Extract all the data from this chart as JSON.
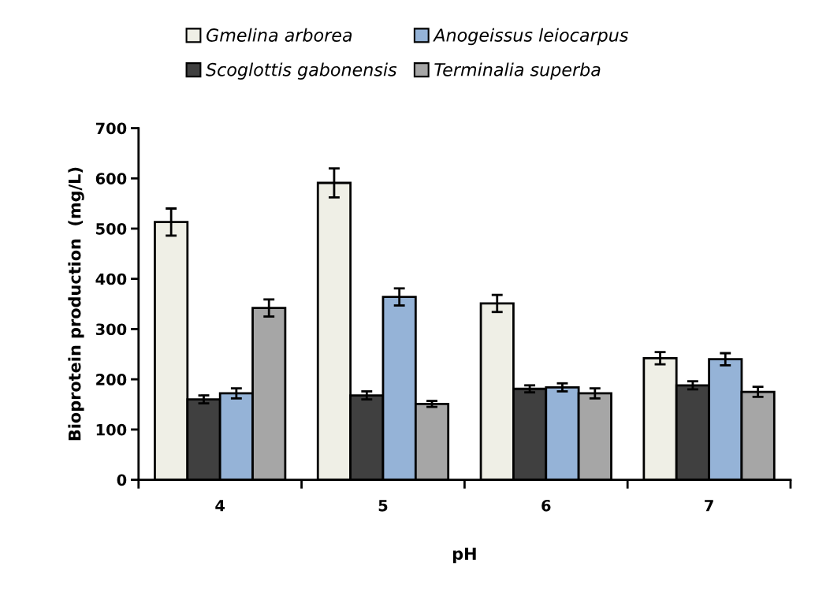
{
  "chart_data": {
    "type": "bar",
    "xlabel": "pH",
    "ylabel": "Bioprotein production  (mg/L)",
    "categories": [
      "4",
      "5",
      "6",
      "7"
    ],
    "series": [
      {
        "name": "Gmelina arborea",
        "color": "#efefe6",
        "values": [
          513,
          591,
          351,
          242
        ],
        "errors": [
          27,
          29,
          17,
          12
        ]
      },
      {
        "name": "Scoglottis gabonensis",
        "color": "#404040",
        "values": [
          160,
          168,
          181,
          188
        ],
        "errors": [
          8,
          8,
          7,
          8
        ]
      },
      {
        "name": "Anogeissus leiocarpus",
        "color": "#95b3d7",
        "values": [
          172,
          364,
          184,
          240
        ],
        "errors": [
          10,
          17,
          8,
          12
        ]
      },
      {
        "name": "Terminalia superba",
        "color": "#a6a6a6",
        "values": [
          342,
          151,
          172,
          175
        ],
        "errors": [
          17,
          6,
          10,
          10
        ]
      }
    ],
    "ylim": [
      0,
      700
    ],
    "yticks": [
      0,
      100,
      200,
      300,
      400,
      500,
      600,
      700
    ],
    "grid": false,
    "legend": "top"
  }
}
